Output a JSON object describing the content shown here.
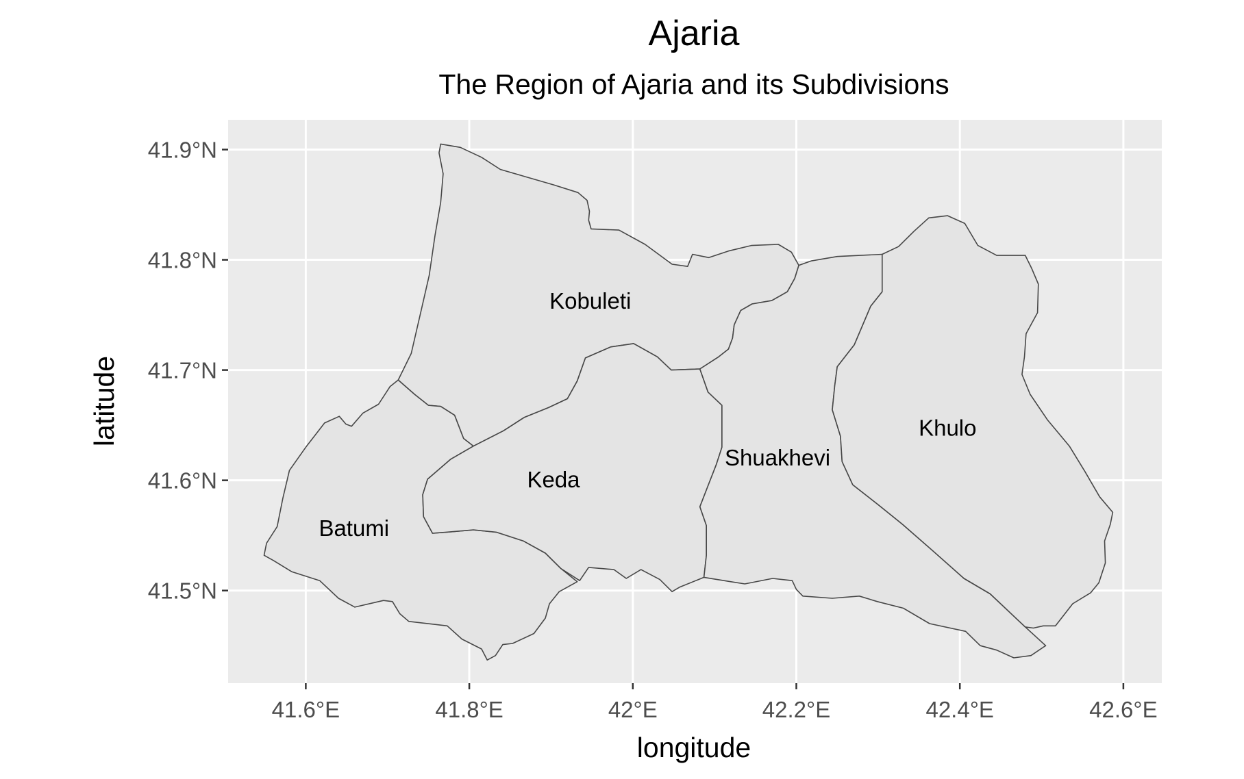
{
  "title": "Ajaria",
  "subtitle": "The Region of Ajaria and its Subdivisions",
  "x_axis_title": "longitude",
  "y_axis_title": "latitude",
  "colors": {
    "panel_background": "#ebebeb",
    "gridlines": "#ffffff",
    "region_fill": "#e4e4e4",
    "region_border": "#474747",
    "tick_labels": "#4d4d4d"
  },
  "x_ticks": [
    {
      "value": 41.6,
      "label": "41.6°E"
    },
    {
      "value": 41.8,
      "label": "41.8°E"
    },
    {
      "value": 42.0,
      "label": "42°E"
    },
    {
      "value": 42.2,
      "label": "42.2°E"
    },
    {
      "value": 42.4,
      "label": "42.4°E"
    },
    {
      "value": 42.6,
      "label": "42.6°E"
    }
  ],
  "y_ticks": [
    {
      "value": 41.5,
      "label": "41.5°N"
    },
    {
      "value": 41.6,
      "label": "41.6°N"
    },
    {
      "value": 41.7,
      "label": "41.7°N"
    },
    {
      "value": 41.8,
      "label": "41.8°N"
    },
    {
      "value": 41.9,
      "label": "41.9°N"
    }
  ],
  "x_range": [
    41.505,
    42.647
  ],
  "y_range": [
    41.416,
    41.927
  ],
  "regions": [
    {
      "name": "Kobuleti",
      "label_at": [
        41.948,
        41.763
      ],
      "boundary": [
        [
          41.765,
          41.905
        ],
        [
          41.789,
          41.902
        ],
        [
          41.815,
          41.893
        ],
        [
          41.838,
          41.882
        ],
        [
          41.903,
          41.868
        ],
        [
          41.933,
          41.861
        ],
        [
          41.944,
          41.854
        ],
        [
          41.947,
          41.844
        ],
        [
          41.946,
          41.836
        ],
        [
          41.949,
          41.828
        ],
        [
          41.983,
          41.827
        ],
        [
          42.015,
          41.814
        ],
        [
          42.048,
          41.796
        ],
        [
          42.067,
          41.794
        ],
        [
          42.073,
          41.805
        ],
        [
          42.093,
          41.802
        ],
        [
          42.117,
          41.808
        ],
        [
          42.145,
          41.813
        ],
        [
          42.178,
          41.814
        ],
        [
          42.194,
          41.807
        ],
        [
          42.203,
          41.795
        ],
        [
          42.198,
          41.783
        ],
        [
          42.189,
          41.771
        ],
        [
          42.17,
          41.763
        ],
        [
          42.146,
          41.76
        ],
        [
          42.132,
          41.754
        ],
        [
          42.124,
          41.741
        ],
        [
          42.122,
          41.729
        ],
        [
          42.117,
          41.719
        ],
        [
          42.105,
          41.712
        ],
        [
          42.082,
          41.701
        ],
        [
          42.047,
          41.7
        ],
        [
          42.03,
          41.712
        ],
        [
          42.001,
          41.724
        ],
        [
          41.973,
          41.721
        ],
        [
          41.942,
          41.711
        ],
        [
          41.932,
          41.69
        ],
        [
          41.92,
          41.674
        ],
        [
          41.897,
          41.666
        ],
        [
          41.867,
          41.657
        ],
        [
          41.842,
          41.645
        ],
        [
          41.805,
          41.631
        ],
        [
          41.793,
          41.638
        ],
        [
          41.782,
          41.659
        ],
        [
          41.765,
          41.667
        ],
        [
          41.75,
          41.668
        ],
        [
          41.733,
          41.678
        ],
        [
          41.713,
          41.691
        ],
        [
          41.729,
          41.715
        ],
        [
          41.742,
          41.757
        ],
        [
          41.751,
          41.786
        ],
        [
          41.758,
          41.822
        ],
        [
          41.765,
          41.852
        ],
        [
          41.768,
          41.878
        ],
        [
          41.763,
          41.897
        ],
        [
          41.765,
          41.905
        ]
      ]
    },
    {
      "name": "Batumi",
      "label_at": [
        41.659,
        41.557
      ],
      "boundary": [
        [
          41.713,
          41.691
        ],
        [
          41.733,
          41.678
        ],
        [
          41.75,
          41.668
        ],
        [
          41.765,
          41.667
        ],
        [
          41.782,
          41.659
        ],
        [
          41.793,
          41.638
        ],
        [
          41.805,
          41.631
        ],
        [
          41.777,
          41.619
        ],
        [
          41.749,
          41.601
        ],
        [
          41.743,
          41.587
        ],
        [
          41.744,
          41.567
        ],
        [
          41.755,
          41.552
        ],
        [
          41.772,
          41.553
        ],
        [
          41.805,
          41.555
        ],
        [
          41.833,
          41.553
        ],
        [
          41.866,
          41.545
        ],
        [
          41.893,
          41.534
        ],
        [
          41.912,
          41.52
        ],
        [
          41.932,
          41.508
        ],
        [
          41.91,
          41.499
        ],
        [
          41.898,
          41.488
        ],
        [
          41.893,
          41.475
        ],
        [
          41.879,
          41.461
        ],
        [
          41.853,
          41.452
        ],
        [
          41.841,
          41.451
        ],
        [
          41.832,
          41.441
        ],
        [
          41.822,
          41.437
        ],
        [
          41.815,
          41.447
        ],
        [
          41.791,
          41.456
        ],
        [
          41.773,
          41.468
        ],
        [
          41.726,
          41.472
        ],
        [
          41.715,
          41.479
        ],
        [
          41.706,
          41.49
        ],
        [
          41.695,
          41.491
        ],
        [
          41.66,
          41.485
        ],
        [
          41.64,
          41.493
        ],
        [
          41.617,
          41.509
        ],
        [
          41.583,
          41.517
        ],
        [
          41.561,
          41.527
        ],
        [
          41.549,
          41.532
        ],
        [
          41.552,
          41.543
        ],
        [
          41.565,
          41.558
        ],
        [
          41.572,
          41.584
        ],
        [
          41.58,
          41.609
        ],
        [
          41.6,
          41.63
        ],
        [
          41.623,
          41.652
        ],
        [
          41.641,
          41.658
        ],
        [
          41.649,
          41.651
        ],
        [
          41.656,
          41.649
        ],
        [
          41.67,
          41.661
        ],
        [
          41.689,
          41.669
        ],
        [
          41.703,
          41.685
        ],
        [
          41.713,
          41.691
        ]
      ]
    },
    {
      "name": "Keda",
      "label_at": [
        41.903,
        41.601
      ],
      "boundary": [
        [
          41.805,
          41.631
        ],
        [
          41.842,
          41.645
        ],
        [
          41.867,
          41.657
        ],
        [
          41.897,
          41.666
        ],
        [
          41.92,
          41.674
        ],
        [
          41.932,
          41.69
        ],
        [
          41.942,
          41.711
        ],
        [
          41.973,
          41.721
        ],
        [
          42.001,
          41.724
        ],
        [
          42.03,
          41.712
        ],
        [
          42.047,
          41.7
        ],
        [
          42.082,
          41.701
        ],
        [
          42.092,
          41.68
        ],
        [
          42.109,
          41.668
        ],
        [
          42.109,
          41.63
        ],
        [
          42.102,
          41.614
        ],
        [
          42.093,
          41.597
        ],
        [
          42.082,
          41.576
        ],
        [
          42.09,
          41.559
        ],
        [
          42.09,
          41.532
        ],
        [
          42.087,
          41.512
        ],
        [
          42.057,
          41.503
        ],
        [
          42.048,
          41.499
        ],
        [
          42.033,
          41.51
        ],
        [
          42.01,
          41.519
        ],
        [
          41.992,
          41.511
        ],
        [
          41.977,
          41.519
        ],
        [
          41.946,
          41.521
        ],
        [
          41.935,
          41.509
        ],
        [
          41.912,
          41.52
        ],
        [
          41.893,
          41.534
        ],
        [
          41.866,
          41.545
        ],
        [
          41.833,
          41.553
        ],
        [
          41.805,
          41.555
        ],
        [
          41.772,
          41.553
        ],
        [
          41.755,
          41.552
        ],
        [
          41.744,
          41.567
        ],
        [
          41.743,
          41.587
        ],
        [
          41.749,
          41.601
        ],
        [
          41.777,
          41.619
        ],
        [
          41.805,
          41.631
        ]
      ]
    },
    {
      "name": "Shuakhevi",
      "label_at": [
        42.177,
        41.621
      ],
      "boundary": [
        [
          42.082,
          41.701
        ],
        [
          42.105,
          41.712
        ],
        [
          42.117,
          41.719
        ],
        [
          42.122,
          41.729
        ],
        [
          42.124,
          41.741
        ],
        [
          42.132,
          41.754
        ],
        [
          42.146,
          41.76
        ],
        [
          42.17,
          41.763
        ],
        [
          42.189,
          41.771
        ],
        [
          42.198,
          41.783
        ],
        [
          42.203,
          41.795
        ],
        [
          42.218,
          41.799
        ],
        [
          42.25,
          41.803
        ],
        [
          42.305,
          41.805
        ],
        [
          42.305,
          41.771
        ],
        [
          42.291,
          41.758
        ],
        [
          42.271,
          41.723
        ],
        [
          42.25,
          41.703
        ],
        [
          42.247,
          41.686
        ],
        [
          42.244,
          41.664
        ],
        [
          42.254,
          41.64
        ],
        [
          42.256,
          41.617
        ],
        [
          42.269,
          41.596
        ],
        [
          42.3,
          41.578
        ],
        [
          42.33,
          41.56
        ],
        [
          42.367,
          41.536
        ],
        [
          42.405,
          41.511
        ],
        [
          42.437,
          41.497
        ],
        [
          42.48,
          41.467
        ],
        [
          42.505,
          41.45
        ],
        [
          42.487,
          41.441
        ],
        [
          42.466,
          41.439
        ],
        [
          42.445,
          41.446
        ],
        [
          42.425,
          41.45
        ],
        [
          42.407,
          41.463
        ],
        [
          42.363,
          41.47
        ],
        [
          42.331,
          41.484
        ],
        [
          42.299,
          41.49
        ],
        [
          42.277,
          41.495
        ],
        [
          42.244,
          41.493
        ],
        [
          42.208,
          41.495
        ],
        [
          42.2,
          41.501
        ],
        [
          42.195,
          41.509
        ],
        [
          42.171,
          41.511
        ],
        [
          42.137,
          41.506
        ],
        [
          42.12,
          41.508
        ],
        [
          42.087,
          41.512
        ],
        [
          42.09,
          41.532
        ],
        [
          42.09,
          41.559
        ],
        [
          42.082,
          41.576
        ],
        [
          42.093,
          41.597
        ],
        [
          42.102,
          41.614
        ],
        [
          42.109,
          41.63
        ],
        [
          42.109,
          41.668
        ],
        [
          42.092,
          41.68
        ],
        [
          42.082,
          41.701
        ]
      ]
    },
    {
      "name": "Khulo",
      "label_at": [
        42.385,
        41.648
      ],
      "boundary": [
        [
          42.305,
          41.805
        ],
        [
          42.325,
          41.812
        ],
        [
          42.344,
          41.826
        ],
        [
          42.362,
          41.838
        ],
        [
          42.385,
          41.84
        ],
        [
          42.406,
          41.833
        ],
        [
          42.422,
          41.813
        ],
        [
          42.445,
          41.804
        ],
        [
          42.48,
          41.804
        ],
        [
          42.488,
          41.792
        ],
        [
          42.496,
          41.778
        ],
        [
          42.495,
          41.752
        ],
        [
          42.481,
          41.733
        ],
        [
          42.479,
          41.712
        ],
        [
          42.476,
          41.696
        ],
        [
          42.486,
          41.678
        ],
        [
          42.507,
          41.655
        ],
        [
          42.534,
          41.631
        ],
        [
          42.553,
          41.608
        ],
        [
          42.571,
          41.585
        ],
        [
          42.587,
          41.571
        ],
        [
          42.584,
          41.56
        ],
        [
          42.577,
          41.545
        ],
        [
          42.578,
          41.525
        ],
        [
          42.57,
          41.507
        ],
        [
          42.56,
          41.498
        ],
        [
          42.538,
          41.488
        ],
        [
          42.517,
          41.468
        ],
        [
          42.502,
          41.468
        ],
        [
          42.49,
          41.466
        ],
        [
          42.48,
          41.467
        ],
        [
          42.437,
          41.497
        ],
        [
          42.405,
          41.511
        ],
        [
          42.367,
          41.536
        ],
        [
          42.33,
          41.56
        ],
        [
          42.3,
          41.578
        ],
        [
          42.269,
          41.596
        ],
        [
          42.256,
          41.617
        ],
        [
          42.254,
          41.64
        ],
        [
          42.244,
          41.664
        ],
        [
          42.247,
          41.686
        ],
        [
          42.25,
          41.703
        ],
        [
          42.271,
          41.723
        ],
        [
          42.291,
          41.758
        ],
        [
          42.305,
          41.771
        ],
        [
          42.305,
          41.805
        ]
      ]
    }
  ]
}
